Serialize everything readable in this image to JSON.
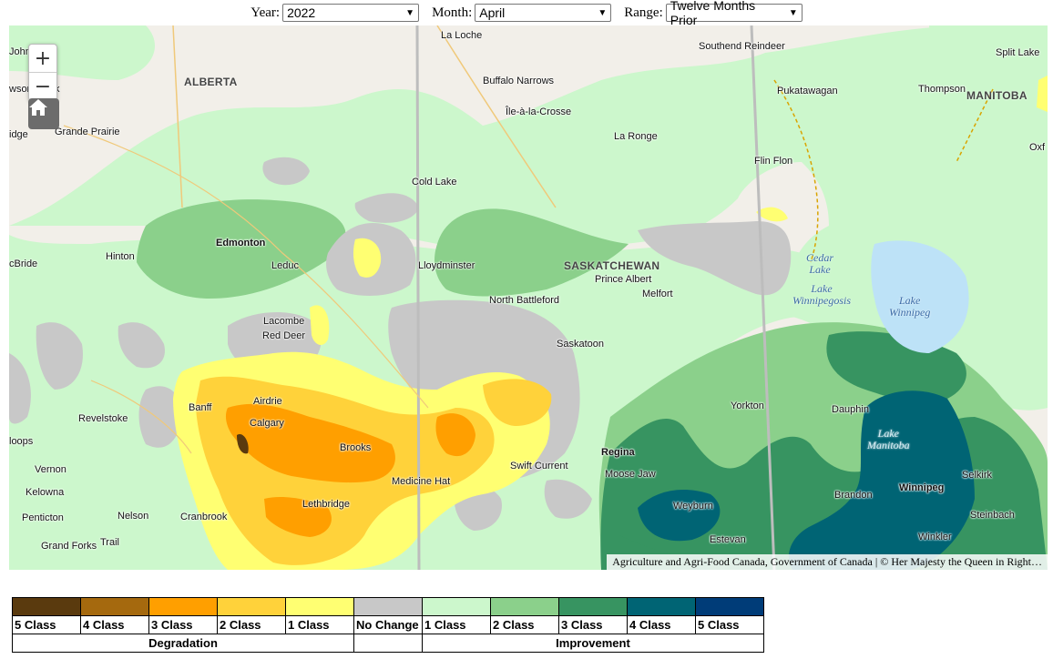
{
  "controls": {
    "year_label": "Year:",
    "year_value": "2022",
    "month_label": "Month:",
    "month_value": "April",
    "range_label": "Range:",
    "range_value": "Twelve Months Prior"
  },
  "map": {
    "attribution": "Agriculture and Agri-Food Canada, Government of Canada | © Her Majesty the Queen in Right…",
    "provinces": [
      "ALBERTA",
      "SASKATCHEWAN",
      "MANITOBA"
    ],
    "places": {
      "john": "John",
      "wson": "wson",
      "lk": "k",
      "idge": "idge",
      "grande_prairie": "Grande Prairie",
      "la_loche": "La Loche",
      "southend": "Southend Reindeer",
      "split_lake": "Split Lake",
      "buffalo_narrows": "Buffalo Narrows",
      "ile_a_la_crosse": "Île-à-la-Crosse",
      "pukatawagan": "Pukatawagan",
      "thompson": "Thompson",
      "la_ronge": "La Ronge",
      "oxf": "Oxf",
      "flin_flon": "Flin Flon",
      "cold_lake": "Cold Lake",
      "edmonton": "Edmonton",
      "hinton": "Hinton",
      "cbride": "cBride",
      "leduc": "Leduc",
      "lloydminster": "Lloydminster",
      "prince_albert": "Prince Albert",
      "melfort": "Melfort",
      "north_battleford": "North Battleford",
      "lacombe": "Lacombe",
      "red_deer": "Red Deer",
      "saskatoon": "Saskatoon",
      "yorkton": "Yorkton",
      "dauphin": "Dauphin",
      "revelstoke": "Revelstoke",
      "banff": "Banff",
      "airdrie": "Airdrie",
      "calgary": "Calgary",
      "brooks": "Brooks",
      "regina": "Regina",
      "loops": "loops",
      "vernon": "Vernon",
      "swift_current": "Swift Current",
      "moose_jaw": "Moose Jaw",
      "selkirk": "Selkirk",
      "kelowna": "Kelowna",
      "medicine_hat": "Medicine Hat",
      "winnipeg": "Winnipeg",
      "brandon": "Brandon",
      "lethbridge": "Lethbridge",
      "weyburn": "Weyburn",
      "steinbach": "Steinbach",
      "penticton": "Penticton",
      "nelson": "Nelson",
      "cranbrook": "Cranbrook",
      "winkler": "Winkler",
      "estevan": "Estevan",
      "grand_forks": "Grand Forks",
      "trail": "Trail"
    },
    "lakes": {
      "cedar": "Cedar\nLake",
      "winnipegosis": "Lake\nWinnipegosis",
      "lake_winnipeg": "Lake\nWinnipeg",
      "lake_manitoba": "Lake\nManitoba"
    }
  },
  "legend": {
    "swatches": [
      {
        "label": "5 Class",
        "color": "#5a3a0e"
      },
      {
        "label": "4 Class",
        "color": "#a5690e"
      },
      {
        "label": "3 Class",
        "color": "#ff9f00"
      },
      {
        "label": "2 Class",
        "color": "#ffd23a"
      },
      {
        "label": "1 Class",
        "color": "#ffff72"
      },
      {
        "label": "No Change",
        "color": "#c8c8c8"
      },
      {
        "label": "1 Class",
        "color": "#ccf7cc"
      },
      {
        "label": "2 Class",
        "color": "#8bd08b"
      },
      {
        "label": "3 Class",
        "color": "#379461"
      },
      {
        "label": "4 Class",
        "color": "#006474"
      },
      {
        "label": "5 Class",
        "color": "#003c78"
      }
    ],
    "degradation_label": "Degradation",
    "improvement_label": "Improvement"
  }
}
